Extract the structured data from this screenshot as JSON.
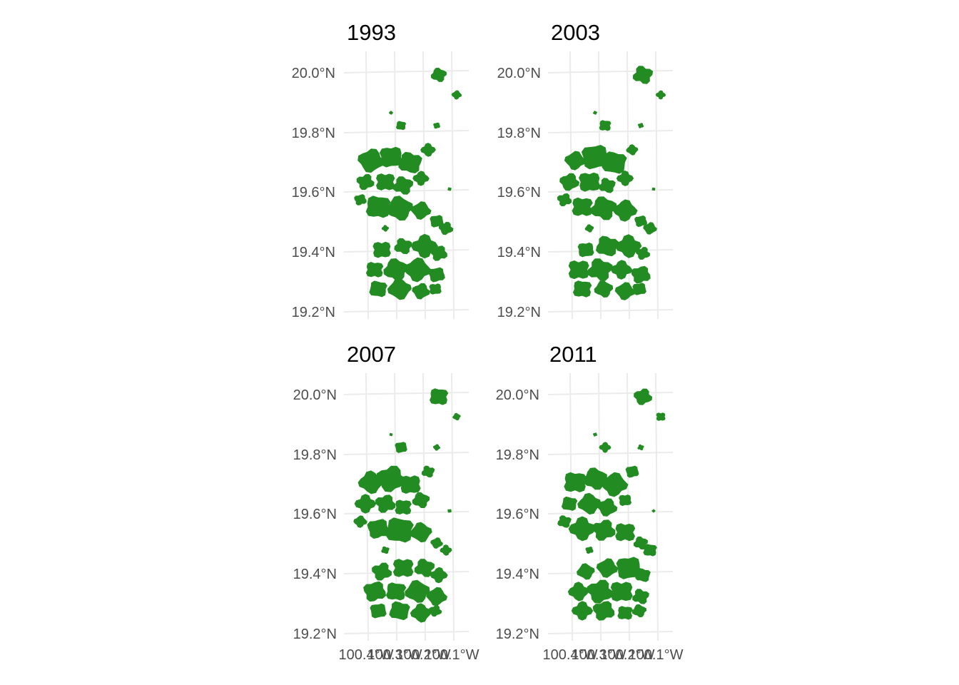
{
  "colors": {
    "forest": "#228b22",
    "grid": "#ebebeb",
    "axis_text": "#4d4d4d",
    "title": "#000000",
    "background": "#ffffff"
  },
  "chart_data": {
    "type": "map",
    "facet_layout": "2x2",
    "grid": true,
    "legend": "none",
    "y_ticks": [
      "20.0°N",
      "19.8°N",
      "19.6°N",
      "19.4°N",
      "19.2°N"
    ],
    "x_ticks": [
      "100.4°W",
      "100.3°W",
      "100.2°W",
      "100.1°W"
    ],
    "x_tick_overlap_text": "100.1°W",
    "panels": [
      {
        "title": "1993"
      },
      {
        "title": "2003"
      },
      {
        "title": "2007"
      },
      {
        "title": "2011"
      }
    ]
  }
}
